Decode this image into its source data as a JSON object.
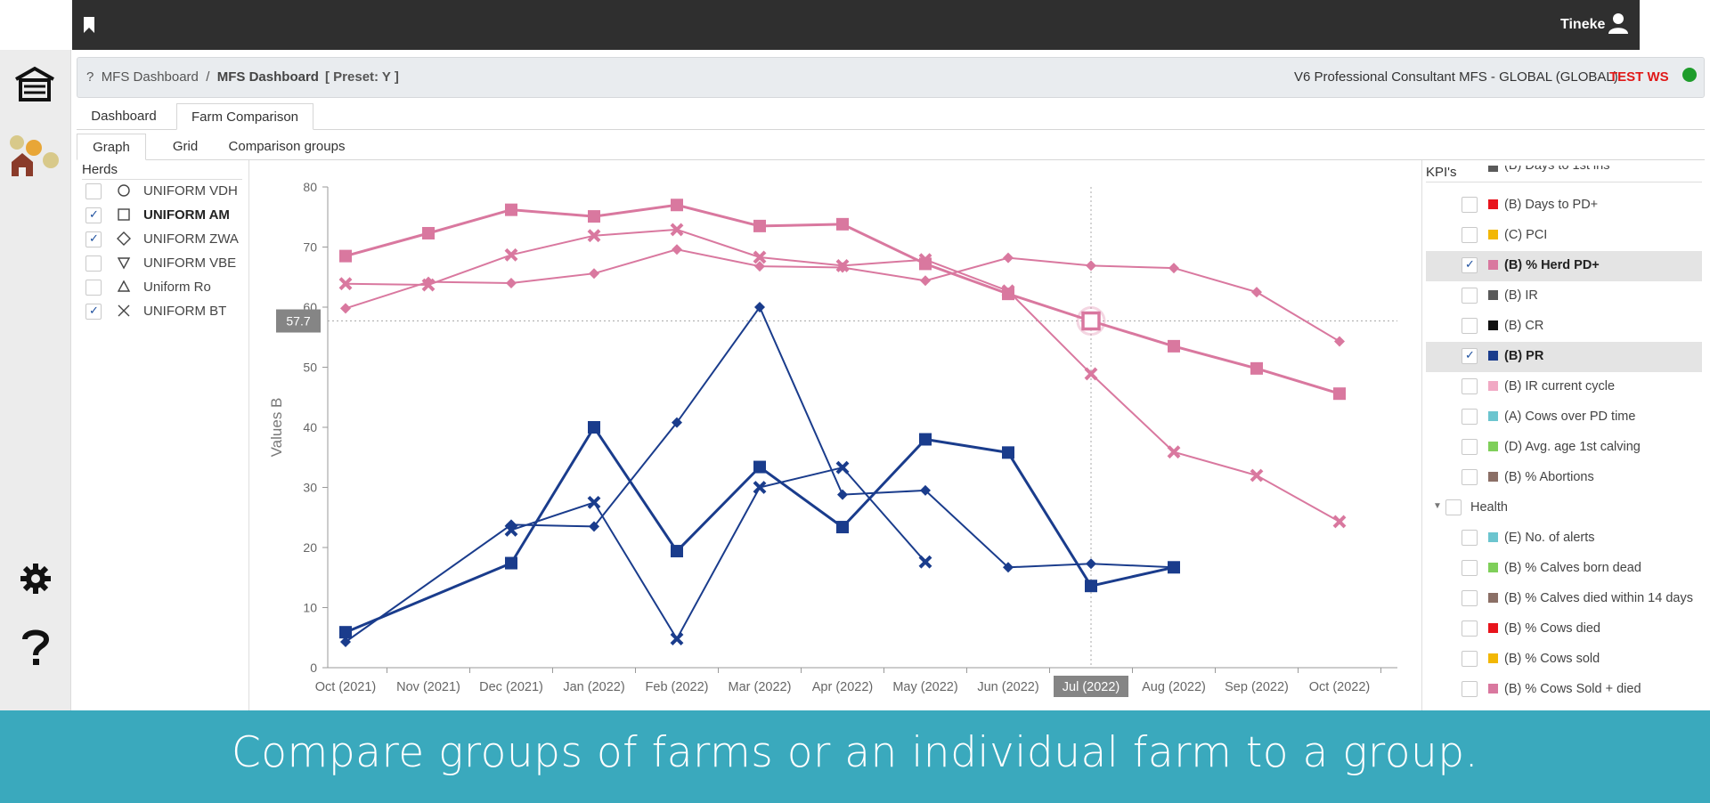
{
  "topbar": {
    "user_name": "Tineke"
  },
  "header": {
    "help_mark": "?",
    "breadcrumb_parent": "MFS Dashboard",
    "breadcrumb_sep": "/",
    "breadcrumb_current": "MFS Dashboard",
    "preset": "[ Preset: Y ]",
    "account": "V6 Professional Consultant MFS - GLOBAL (GLOBAL)",
    "environment": "TEST WS",
    "status_color": "#1e9c2b"
  },
  "tabs": {
    "main": [
      {
        "label": "Dashboard",
        "active": false
      },
      {
        "label": "Farm Comparison",
        "active": true
      }
    ],
    "sub": [
      {
        "label": "Graph",
        "active": true
      },
      {
        "label": "Grid",
        "active": false
      },
      {
        "label": "Comparison groups",
        "active": false
      }
    ]
  },
  "herds": {
    "title": "Herds",
    "items": [
      {
        "label": "UNIFORM VDH",
        "checked": false,
        "symbol": "circle",
        "bold": false
      },
      {
        "label": "UNIFORM AM",
        "checked": true,
        "symbol": "square",
        "bold": true
      },
      {
        "label": "UNIFORM ZWA",
        "checked": true,
        "symbol": "diamond",
        "bold": false
      },
      {
        "label": "UNIFORM VBE",
        "checked": false,
        "symbol": "triangle-down",
        "bold": false
      },
      {
        "label": "Uniform Ro",
        "checked": false,
        "symbol": "triangle-up",
        "bold": false
      },
      {
        "label": "UNIFORM BT",
        "checked": true,
        "symbol": "cross",
        "bold": false
      }
    ]
  },
  "kpis": {
    "title": "KPI's",
    "partial_item": "(B) Days to 1st ins",
    "items": [
      {
        "label": "(B) Days to PD+",
        "color": "#e8141c",
        "checked": false
      },
      {
        "label": "(C) PCI",
        "color": "#f2b705",
        "checked": false
      },
      {
        "label": "(B) % Herd PD+",
        "color": "#d9789f",
        "checked": true,
        "selected": true
      },
      {
        "label": "(B) IR",
        "color": "#5a5a5a",
        "checked": false
      },
      {
        "label": "(B) CR",
        "color": "#111111",
        "checked": false
      },
      {
        "label": "(B) PR",
        "color": "#1a3c8c",
        "checked": true,
        "selected": true
      },
      {
        "label": "(B) IR current cycle",
        "color": "#f1a9c4",
        "checked": false
      },
      {
        "label": "(A) Cows over PD time",
        "color": "#6cc5cf",
        "checked": false
      },
      {
        "label": "(D) Avg. age 1st calving",
        "color": "#7fcf5a",
        "checked": false
      },
      {
        "label": "(B) % Abortions",
        "color": "#8b6f66",
        "checked": false
      }
    ],
    "group": {
      "label": "Health",
      "checked": false
    },
    "health_items": [
      {
        "label": "(E) No. of alerts",
        "color": "#6cc5cf",
        "checked": false
      },
      {
        "label": "(B) % Calves born dead",
        "color": "#7fcf5a",
        "checked": false
      },
      {
        "label": "(B) % Calves died within 14 days",
        "color": "#8b6f66",
        "checked": false
      },
      {
        "label": "(B) % Cows died",
        "color": "#e8141c",
        "checked": false
      },
      {
        "label": "(B) % Cows sold",
        "color": "#f2b705",
        "checked": false
      },
      {
        "label": "(B) % Cows Sold + died",
        "color": "#d9789f",
        "checked": false
      }
    ]
  },
  "chart_data": {
    "type": "line",
    "ylabel": "Values B",
    "ylim": [
      0,
      80
    ],
    "yticks": [
      0,
      10,
      20,
      30,
      40,
      50,
      60,
      70,
      80
    ],
    "categories": [
      "Oct (2021)",
      "Nov (2021)",
      "Dec (2021)",
      "Jan (2022)",
      "Feb (2022)",
      "Mar (2022)",
      "Apr (2022)",
      "May (2022)",
      "Jun (2022)",
      "Jul (2022)",
      "Aug (2022)",
      "Sep (2022)",
      "Oct (2022)"
    ],
    "crosshair": {
      "category": "Jul (2022)",
      "value": 57.7,
      "label": "57.7"
    },
    "grid": false,
    "series": [
      {
        "kpi": "(B) % Herd PD+",
        "herd": "UNIFORM AM",
        "marker": "square",
        "color": "#d9789f",
        "values": [
          68.5,
          72.3,
          76.2,
          75.1,
          77.0,
          73.5,
          73.8,
          67.2,
          62.2,
          57.7,
          53.5,
          49.8,
          45.6
        ]
      },
      {
        "kpi": "(B) % Herd PD+",
        "herd": "UNIFORM ZWA",
        "marker": "diamond",
        "color": "#d9789f",
        "values": [
          59.8,
          64.2,
          64.0,
          65.6,
          69.6,
          66.8,
          66.6,
          64.4,
          68.2,
          66.9,
          66.5,
          62.5,
          54.3
        ]
      },
      {
        "kpi": "(B) % Herd PD+",
        "herd": "UNIFORM BT",
        "marker": "cross",
        "color": "#d9789f",
        "values": [
          63.9,
          63.7,
          68.7,
          71.9,
          72.9,
          68.3,
          66.9,
          67.9,
          62.7,
          48.9,
          35.9,
          32.0,
          24.3
        ]
      },
      {
        "kpi": "(B) PR",
        "herd": "UNIFORM AM",
        "marker": "square",
        "color": "#1a3c8c",
        "values": [
          5.9,
          null,
          17.4,
          40.0,
          19.4,
          33.4,
          23.4,
          38.0,
          35.8,
          13.6,
          16.7,
          null,
          null
        ]
      },
      {
        "kpi": "(B) PR",
        "herd": "UNIFORM ZWA",
        "marker": "diamond",
        "color": "#1a3c8c",
        "values": [
          4.3,
          null,
          23.8,
          23.5,
          40.8,
          60.0,
          28.8,
          29.5,
          16.7,
          17.3,
          16.7,
          null,
          null
        ]
      },
      {
        "kpi": "(B) PR",
        "herd": "UNIFORM BT",
        "marker": "cross",
        "color": "#1a3c8c",
        "values": [
          null,
          null,
          22.9,
          27.5,
          4.8,
          30.0,
          33.3,
          17.6,
          null,
          null,
          null,
          null,
          null
        ]
      }
    ]
  },
  "banner": {
    "text": "Compare groups of farms or an individual farm to a group."
  }
}
